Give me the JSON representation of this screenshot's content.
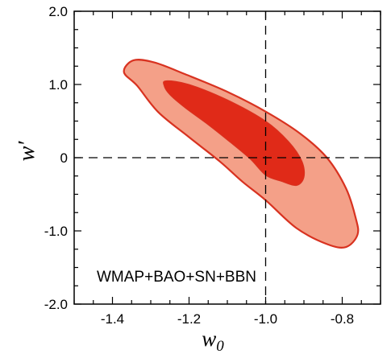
{
  "chart_data": {
    "type": "contour",
    "xlabel": "w",
    "xlabel_sub": "0",
    "ylabel": "w′",
    "xlim": [
      -1.5,
      -0.7
    ],
    "ylim": [
      -2.0,
      2.0
    ],
    "x_ticks": [
      -1.4,
      -1.2,
      -1.0,
      -0.8
    ],
    "x_tick_labels": [
      "-1.4",
      "-1.2",
      "-1.0",
      "-0.8"
    ],
    "y_ticks": [
      2.0,
      1.0,
      0.0,
      -1.0,
      -2.0
    ],
    "y_tick_labels": [
      "2.0",
      "1.0",
      "0",
      "-1.0",
      "-2.0"
    ],
    "annotation": "WMAP+BAO+SN+BBN",
    "reference_lines": {
      "w0": -1.0,
      "wprime": 0.0
    },
    "colors": {
      "outer_fill": "#f4a088",
      "inner_fill": "#e02a18",
      "edge": "#d83220",
      "frame": "#000000"
    },
    "contours": [
      {
        "level": "outer",
        "points": [
          [
            -1.345,
            1.33
          ],
          [
            -1.29,
            1.3
          ],
          [
            -1.21,
            1.14
          ],
          [
            -1.1,
            0.9
          ],
          [
            -1.0,
            0.63
          ],
          [
            -0.91,
            0.33
          ],
          [
            -0.84,
            0.0
          ],
          [
            -0.79,
            -0.42
          ],
          [
            -0.765,
            -0.82
          ],
          [
            -0.76,
            -1.05
          ],
          [
            -0.79,
            -1.22
          ],
          [
            -0.84,
            -1.18
          ],
          [
            -0.92,
            -0.96
          ],
          [
            -1.0,
            -0.58
          ],
          [
            -1.06,
            -0.33
          ],
          [
            -1.12,
            -0.05
          ],
          [
            -1.2,
            0.28
          ],
          [
            -1.28,
            0.62
          ],
          [
            -1.335,
            0.98
          ],
          [
            -1.37,
            1.17
          ]
        ]
      },
      {
        "level": "inner",
        "points": [
          [
            -1.26,
            1.05
          ],
          [
            -1.2,
            1.0
          ],
          [
            -1.1,
            0.79
          ],
          [
            -1.0,
            0.5
          ],
          [
            -0.94,
            0.22
          ],
          [
            -0.905,
            -0.05
          ],
          [
            -0.9,
            -0.27
          ],
          [
            -0.92,
            -0.38
          ],
          [
            -0.96,
            -0.32
          ],
          [
            -1.0,
            -0.24
          ],
          [
            -1.04,
            -0.02
          ],
          [
            -1.09,
            0.2
          ],
          [
            -1.15,
            0.45
          ],
          [
            -1.21,
            0.68
          ],
          [
            -1.25,
            0.86
          ],
          [
            -1.265,
            0.98
          ]
        ]
      }
    ]
  }
}
